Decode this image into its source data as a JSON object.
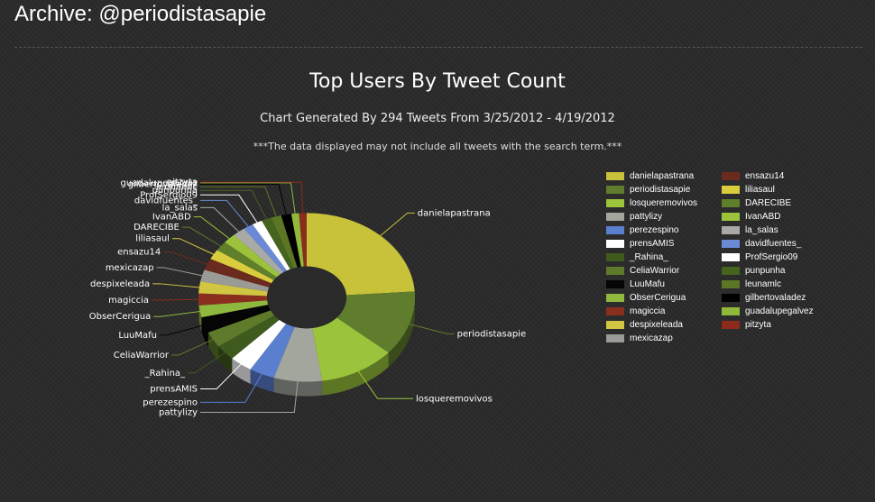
{
  "page": {
    "title": "Archive: @periodistasapie"
  },
  "chart_data": {
    "type": "pie",
    "title": "Top Users By Tweet Count",
    "subtitle": "Chart Generated By 294 Tweets From 3/25/2012 - 4/19/2012",
    "note": "***The data displayed may not include all tweets with the search term.***",
    "legend_placement": "right",
    "slices": [
      {
        "name": "danielapastrana",
        "value": 63,
        "color": "#c7c23a"
      },
      {
        "name": "periodistasapie",
        "value": 33,
        "color": "#5f7d2c"
      },
      {
        "name": "losqueremovivos",
        "value": 30,
        "color": "#9bc43c"
      },
      {
        "name": "pattylizy",
        "value": 19,
        "color": "#a2a69c"
      },
      {
        "name": "perezespino",
        "value": 10,
        "color": "#5b7fcf"
      },
      {
        "name": "prensAMIS",
        "value": 9,
        "color": "#ffffff"
      },
      {
        "name": "_Rahina_",
        "value": 8,
        "color": "#3e5a1c"
      },
      {
        "name": "CeliaWarrior",
        "value": 8,
        "color": "#5e7a2a"
      },
      {
        "name": "LuuMafu",
        "value": 8,
        "color": "#050505"
      },
      {
        "name": "ObserCerigua",
        "value": 6,
        "color": "#8fb83e"
      },
      {
        "name": "magiccia",
        "value": 6,
        "color": "#8a2e20"
      },
      {
        "name": "despixeleada",
        "value": 6,
        "color": "#d1c642"
      },
      {
        "name": "mexicazap",
        "value": 6,
        "color": "#9a9a96"
      },
      {
        "name": "ensazu14",
        "value": 6,
        "color": "#6b2a1e"
      },
      {
        "name": "liliasaul",
        "value": 5,
        "color": "#d9cd3e"
      },
      {
        "name": "DARECIBE",
        "value": 5,
        "color": "#5f7f2a"
      },
      {
        "name": "IvanABD",
        "value": 5,
        "color": "#9cc23c"
      },
      {
        "name": "la_salas",
        "value": 5,
        "color": "#a9aaa5"
      },
      {
        "name": "davidfuentes_",
        "value": 4,
        "color": "#6a8ad6"
      },
      {
        "name": "ProfSergio09",
        "value": 4,
        "color": "#ffffff"
      },
      {
        "name": "punpunha",
        "value": 4,
        "color": "#46641e"
      },
      {
        "name": "leunamlc",
        "value": 4,
        "color": "#5c7626"
      },
      {
        "name": "gilbertovaladez",
        "value": 4,
        "color": "#000000"
      },
      {
        "name": "guadalupegalvez",
        "value": 3,
        "color": "#90b83a"
      },
      {
        "name": "pitzyta",
        "value": 3,
        "color": "#8c2a1c"
      }
    ]
  }
}
